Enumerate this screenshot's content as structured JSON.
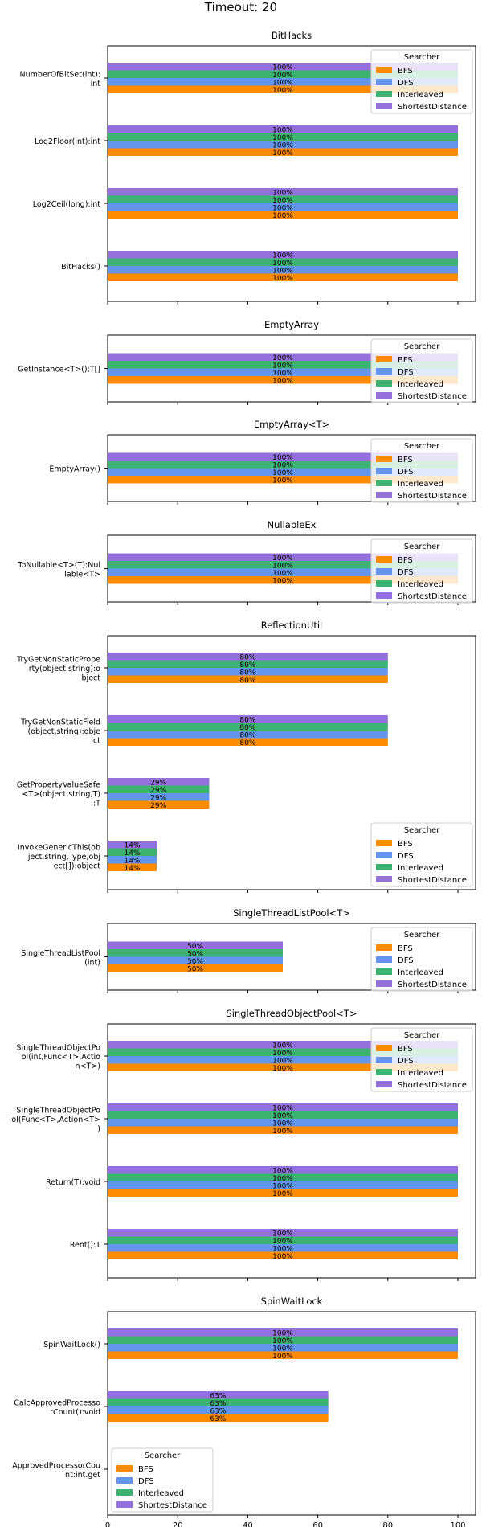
{
  "figure": {
    "title": "Timeout: 20"
  },
  "legend": {
    "title": "Searcher",
    "entries": [
      "BFS",
      "DFS",
      "Interleaved",
      "ShortestDistance"
    ]
  },
  "colors": {
    "BFS": "#ff8c00",
    "DFS": "#6495ed",
    "Interleaved": "#3cb371",
    "ShortestDistance": "#9370db"
  },
  "chart_data": [
    {
      "type": "bar",
      "orientation": "horizontal",
      "title": "BitHacks",
      "xlim": [
        0,
        105
      ],
      "legend_position": "upper right",
      "categories": [
        "NumberOfBitSet(int):\nint",
        "Log2Floor(int):int",
        "Log2Ceil(long):int",
        "BitHacks()"
      ],
      "series": [
        {
          "name": "BFS",
          "values": [
            100,
            100,
            100,
            100
          ]
        },
        {
          "name": "DFS",
          "values": [
            100,
            100,
            100,
            100
          ]
        },
        {
          "name": "Interleaved",
          "values": [
            100,
            100,
            100,
            100
          ]
        },
        {
          "name": "ShortestDistance",
          "values": [
            100,
            100,
            100,
            100
          ]
        }
      ]
    },
    {
      "type": "bar",
      "orientation": "horizontal",
      "title": "EmptyArray",
      "xlim": [
        0,
        105
      ],
      "legend_position": "upper right",
      "categories": [
        "GetInstance<T>():T[]"
      ],
      "series": [
        {
          "name": "BFS",
          "values": [
            100
          ]
        },
        {
          "name": "DFS",
          "values": [
            100
          ]
        },
        {
          "name": "Interleaved",
          "values": [
            100
          ]
        },
        {
          "name": "ShortestDistance",
          "values": [
            100
          ]
        }
      ]
    },
    {
      "type": "bar",
      "orientation": "horizontal",
      "title": "EmptyArray<T>",
      "xlim": [
        0,
        105
      ],
      "legend_position": "upper right",
      "categories": [
        "EmptyArray()"
      ],
      "series": [
        {
          "name": "BFS",
          "values": [
            100
          ]
        },
        {
          "name": "DFS",
          "values": [
            100
          ]
        },
        {
          "name": "Interleaved",
          "values": [
            100
          ]
        },
        {
          "name": "ShortestDistance",
          "values": [
            100
          ]
        }
      ]
    },
    {
      "type": "bar",
      "orientation": "horizontal",
      "title": "NullableEx",
      "xlim": [
        0,
        105
      ],
      "legend_position": "upper right",
      "categories": [
        "ToNullable<T>(T):Nul\nlable<T>"
      ],
      "series": [
        {
          "name": "BFS",
          "values": [
            100
          ]
        },
        {
          "name": "DFS",
          "values": [
            100
          ]
        },
        {
          "name": "Interleaved",
          "values": [
            100
          ]
        },
        {
          "name": "ShortestDistance",
          "values": [
            100
          ]
        }
      ]
    },
    {
      "type": "bar",
      "orientation": "horizontal",
      "title": "ReflectionUtil",
      "xlim": [
        0,
        105
      ],
      "legend_position": "lower right",
      "categories": [
        "TryGetNonStaticPrope\nrty(object,string):o\nbject",
        "TryGetNonStaticField\n(object,string):obje\nct",
        "GetPropertyValueSafe\n<T>(object,string,T)\n:T",
        "InvokeGenericThis(ob\nject,string,Type,obj\nect[]):object"
      ],
      "series": [
        {
          "name": "BFS",
          "values": [
            80,
            80,
            29,
            14
          ]
        },
        {
          "name": "DFS",
          "values": [
            80,
            80,
            29,
            14
          ]
        },
        {
          "name": "Interleaved",
          "values": [
            80,
            80,
            29,
            14
          ]
        },
        {
          "name": "ShortestDistance",
          "values": [
            80,
            80,
            29,
            14
          ]
        }
      ]
    },
    {
      "type": "bar",
      "orientation": "horizontal",
      "title": "SingleThreadListPool<T>",
      "xlim": [
        0,
        105
      ],
      "legend_position": "upper right",
      "categories": [
        "SingleThreadListPool\n(int)"
      ],
      "series": [
        {
          "name": "BFS",
          "values": [
            50
          ]
        },
        {
          "name": "DFS",
          "values": [
            50
          ]
        },
        {
          "name": "Interleaved",
          "values": [
            50
          ]
        },
        {
          "name": "ShortestDistance",
          "values": [
            50
          ]
        }
      ]
    },
    {
      "type": "bar",
      "orientation": "horizontal",
      "title": "SingleThreadObjectPool<T>",
      "xlim": [
        0,
        105
      ],
      "legend_position": "upper right",
      "categories": [
        "SingleThreadObjectPo\nol(int,Func<T>,Actio\nn<T>)",
        "SingleThreadObjectPo\nol(Func<T>,Action<T>\n)",
        "Return(T):void",
        "Rent():T"
      ],
      "series": [
        {
          "name": "BFS",
          "values": [
            100,
            100,
            100,
            100
          ]
        },
        {
          "name": "DFS",
          "values": [
            100,
            100,
            100,
            100
          ]
        },
        {
          "name": "Interleaved",
          "values": [
            100,
            100,
            100,
            100
          ]
        },
        {
          "name": "ShortestDistance",
          "values": [
            100,
            100,
            100,
            100
          ]
        }
      ]
    },
    {
      "type": "bar",
      "orientation": "horizontal",
      "title": "SpinWaitLock",
      "xlim": [
        0,
        105
      ],
      "xticks": [
        0,
        20,
        40,
        60,
        80,
        100
      ],
      "legend_position": "lower left",
      "categories": [
        "SpinWaitLock()",
        "CalcApprovedProcesso\nrCount():void",
        "ApprovedProcessorCou\nnt:int.get"
      ],
      "series": [
        {
          "name": "BFS",
          "values": [
            100,
            63,
            null
          ]
        },
        {
          "name": "DFS",
          "values": [
            100,
            63,
            null
          ]
        },
        {
          "name": "Interleaved",
          "values": [
            100,
            63,
            null
          ]
        },
        {
          "name": "ShortestDistance",
          "values": [
            100,
            63,
            null
          ]
        }
      ]
    }
  ]
}
